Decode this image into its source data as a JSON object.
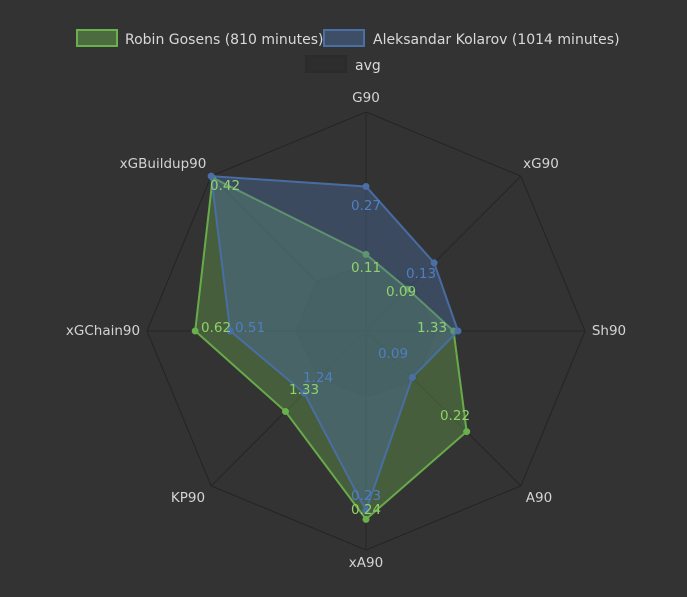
{
  "chart_data": {
    "type": "radar",
    "axes": [
      "G90",
      "xG90",
      "Sh90",
      "A90",
      "xA90",
      "KP90",
      "xGChain90",
      "xGBuildup90"
    ],
    "series": [
      {
        "name": "Robin Gosens (810 minutes)",
        "color": "#6ab04c",
        "values": [
          0.11,
          0.09,
          1.33,
          0.22,
          0.24,
          1.33,
          0.62,
          0.42
        ],
        "labels": [
          "0.11",
          "0.09",
          "1.33",
          "0.22",
          "0.24",
          "1.33",
          "0.62",
          "0.42"
        ],
        "fractions": [
          0.35,
          0.27,
          0.4,
          0.65,
          0.86,
          0.52,
          0.78,
          0.99
        ]
      },
      {
        "name": "Aleksandar Kolarov (1014 minutes)",
        "color": "#4a6fa5",
        "values": [
          0.27,
          0.13,
          1.33,
          0.09,
          0.23,
          1.24,
          0.51,
          0.42
        ],
        "labels": [
          "0.27",
          "0.13",
          "1.33",
          "0.09",
          "0.23",
          "1.24",
          "0.51",
          "0.42"
        ],
        "fractions": [
          0.66,
          0.44,
          0.42,
          0.3,
          0.82,
          0.4,
          0.62,
          1.0
        ]
      },
      {
        "name": "avg",
        "color": "#2b2b2b",
        "values": [],
        "labels": [],
        "fractions": [
          0.3,
          0.3,
          0.32,
          0.32,
          0.3,
          0.3,
          0.32,
          0.32
        ]
      }
    ],
    "legend_position": "top",
    "grid": true
  }
}
